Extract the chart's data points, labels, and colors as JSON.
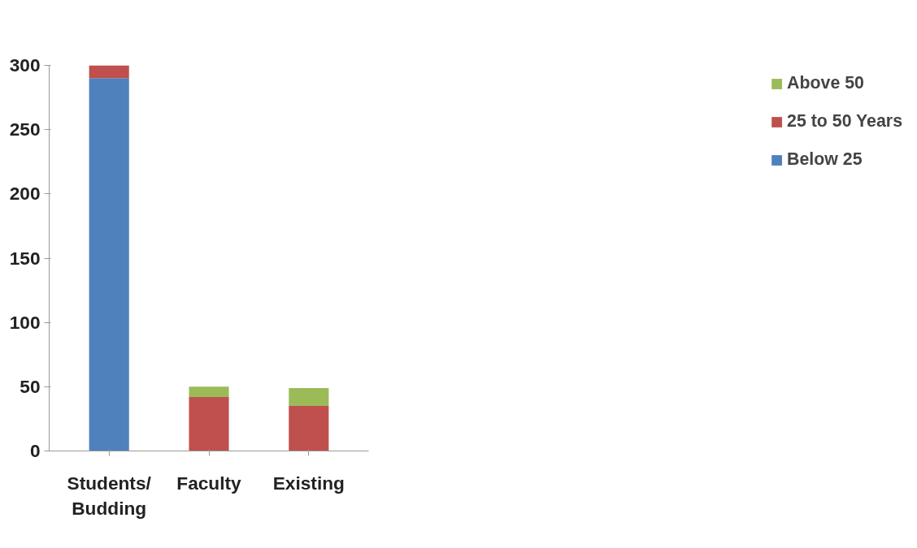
{
  "chart_data": {
    "type": "bar",
    "stacked": true,
    "categories": [
      "Students/\nBudding",
      "Faculty",
      "Existing"
    ],
    "series": [
      {
        "name": "Below 25",
        "color": "#4f81bd",
        "values": [
          290,
          0,
          0
        ]
      },
      {
        "name": "25 to 50 Years",
        "color": "#c0504d",
        "values": [
          10,
          42,
          35
        ]
      },
      {
        "name": "Above 50",
        "color": "#9bbb59",
        "values": [
          0,
          8,
          14
        ]
      }
    ],
    "ylim": [
      0,
      300
    ],
    "yticks": [
      0,
      50,
      100,
      150,
      200,
      250,
      300
    ],
    "grid": false,
    "legend": "right"
  }
}
